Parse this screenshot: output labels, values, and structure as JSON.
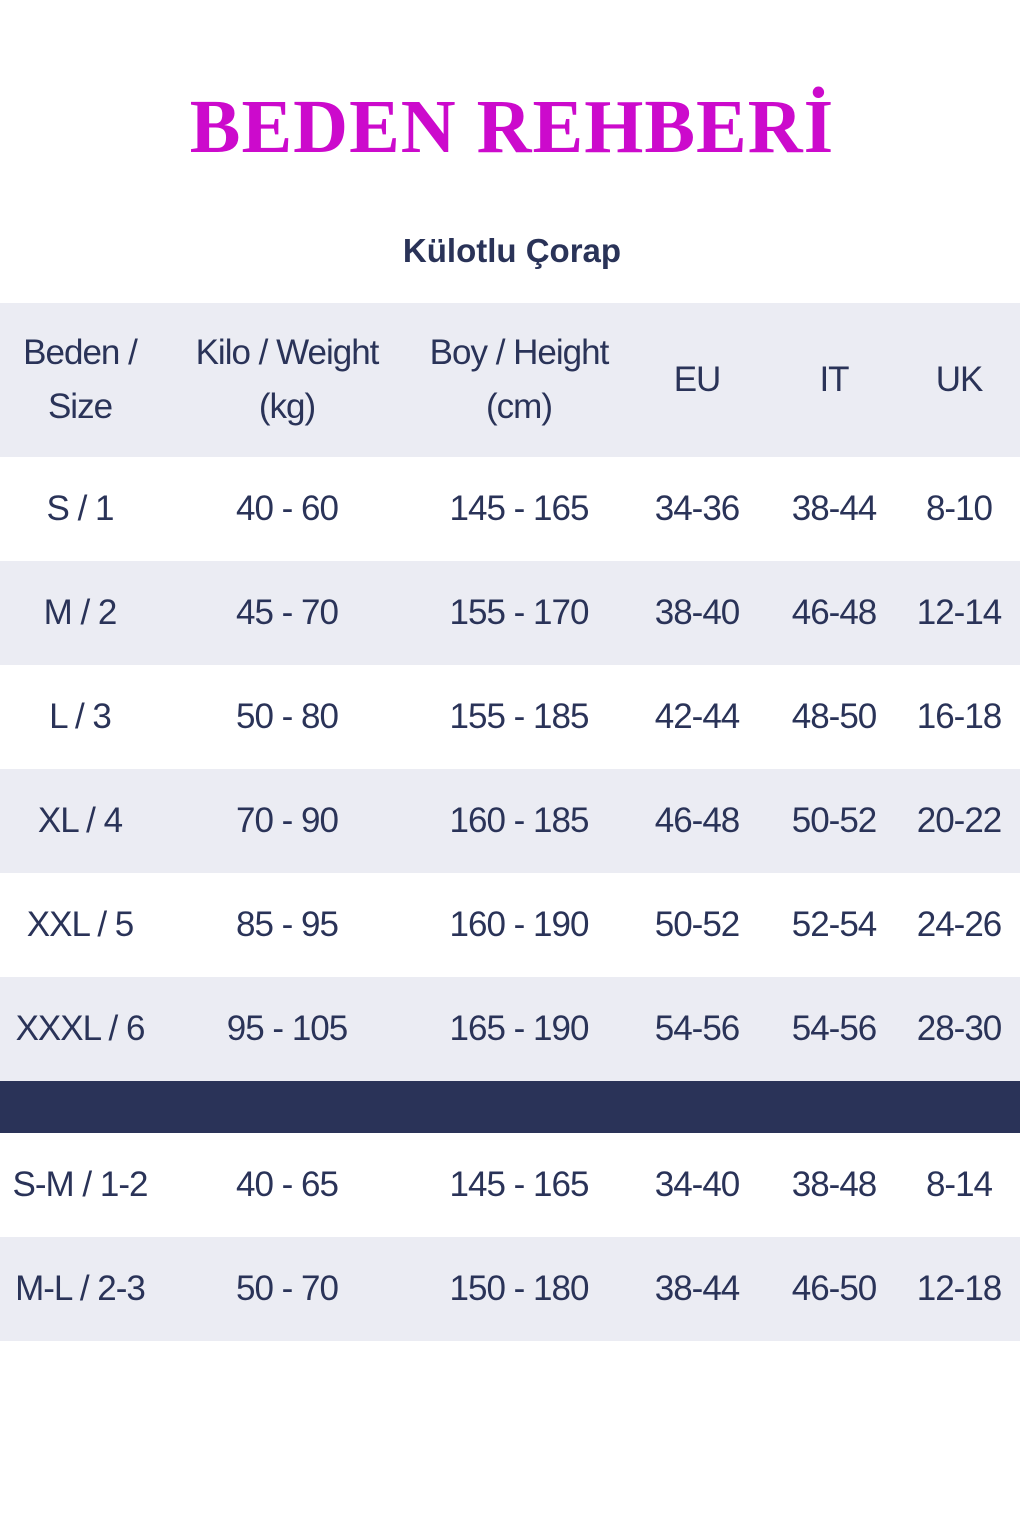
{
  "title": "BEDEN REHBERİ",
  "subtitle": "Külotlu Çorap",
  "colors": {
    "title": "#cc0acc",
    "text": "#2a3358",
    "row_alt": "#ebecf3",
    "separator": "#2a3358"
  },
  "headers": [
    [
      "Beden /",
      "Size"
    ],
    [
      "Kilo / Weight",
      "(kg)"
    ],
    [
      "Boy / Height",
      "(cm)"
    ],
    [
      "EU"
    ],
    [
      "IT"
    ],
    [
      "UK"
    ]
  ],
  "rows": [
    [
      "S / 1",
      "40 - 60",
      "145 - 165",
      "34-36",
      "38-44",
      "8-10"
    ],
    [
      "M / 2",
      "45 - 70",
      "155 - 170",
      "38-40",
      "46-48",
      "12-14"
    ],
    [
      "L / 3",
      "50 - 80",
      "155 - 185",
      "42-44",
      "48-50",
      "16-18"
    ],
    [
      "XL / 4",
      "70 - 90",
      "160 - 185",
      "46-48",
      "50-52",
      "20-22"
    ],
    [
      "XXL / 5",
      "85 - 95",
      "160 - 190",
      "50-52",
      "52-54",
      "24-26"
    ],
    [
      "XXXL / 6",
      "95 - 105",
      "165 - 190",
      "54-56",
      "54-56",
      "28-30"
    ]
  ],
  "rows_combined": [
    [
      "S-M / 1-2",
      "40 - 65",
      "145 - 165",
      "34-40",
      "38-48",
      "8-14"
    ],
    [
      "M-L / 2-3",
      "50 - 70",
      "150 - 180",
      "38-44",
      "46-50",
      "12-18"
    ]
  ]
}
